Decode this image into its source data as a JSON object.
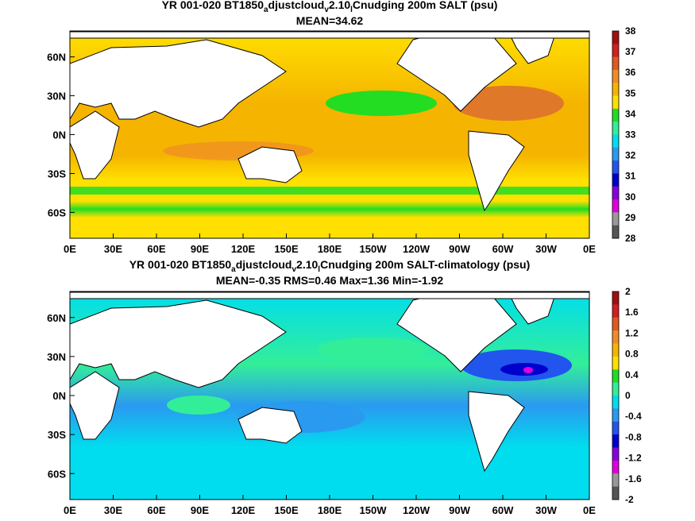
{
  "panel1": {
    "title_pre": "YR 001-020 BT1850",
    "title_s1": "a",
    "title_m1": "djustcloud",
    "title_s2": "v",
    "title_m2": "2.10",
    "title_s3": "l",
    "title_post": "Cnudging 200m SALT (psu)",
    "stats": "MEAN=34.62",
    "colorbar_labels": [
      "38",
      "37",
      "36",
      "35",
      "34",
      "33",
      "32",
      "31",
      "30",
      "29",
      "28"
    ],
    "colorbar_colors": [
      "#a01010",
      "#d02020",
      "#e05a20",
      "#f08c28",
      "#f5b400",
      "#ffe000",
      "#22dd22",
      "#33ee99",
      "#00ddee",
      "#2a9af0",
      "#2255ee",
      "#0000cc",
      "#8800dd",
      "#dd00dd",
      "#999999",
      "#555555"
    ]
  },
  "panel2": {
    "title_pre": "YR 001-020 BT1850",
    "title_s1": "a",
    "title_m1": "djustcloud",
    "title_s2": "v",
    "title_m2": "2.10",
    "title_s3": "l",
    "title_post": "Cnudging 200m SALT-climatology (psu)",
    "stats": "MEAN=-0.35   RMS=0.46   Max=1.36   Min=-1.92",
    "colorbar_labels": [
      "2",
      "1.6",
      "1.2",
      "0.8",
      "0.4",
      "0",
      "-0.4",
      "-0.8",
      "-1.2",
      "-1.6",
      "-2"
    ],
    "colorbar_colors": [
      "#a01010",
      "#d02020",
      "#e05a20",
      "#f08c28",
      "#f5b400",
      "#ffe000",
      "#22dd22",
      "#33ee99",
      "#00ddee",
      "#2a9af0",
      "#2255ee",
      "#0000cc",
      "#8800dd",
      "#dd00dd",
      "#999999",
      "#555555"
    ]
  },
  "axes": {
    "x_ticks": [
      "0E",
      "30E",
      "60E",
      "90E",
      "120E",
      "150E",
      "180E",
      "150W",
      "120W",
      "90W",
      "60W",
      "30W",
      "0E"
    ],
    "y_ticks": [
      "60N",
      "30N",
      "0N",
      "30S",
      "60S"
    ]
  }
}
